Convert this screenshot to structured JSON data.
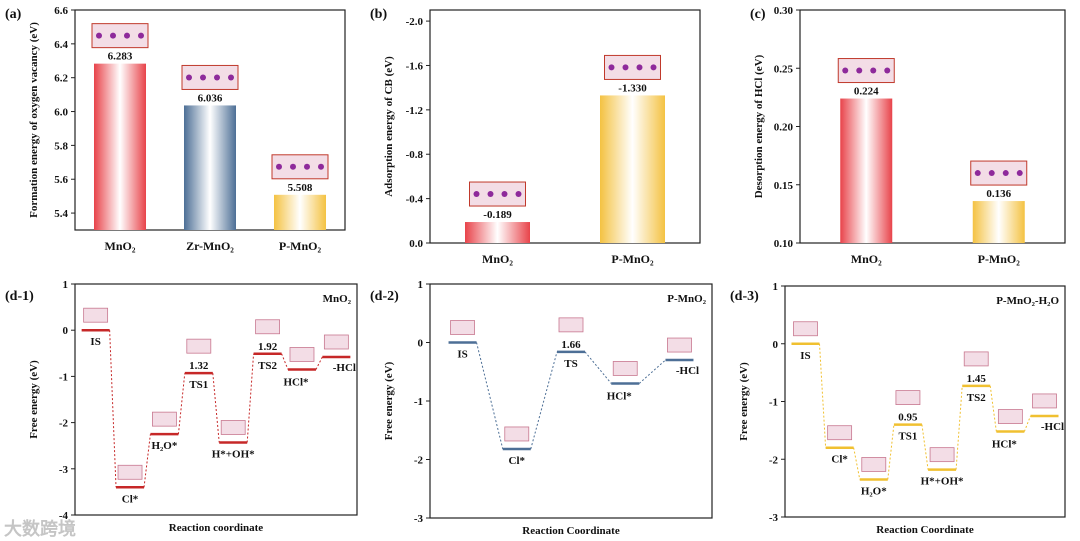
{
  "watermark": "大数跨境",
  "colors": {
    "red": "#e8434a",
    "blue": "#4d6f96",
    "orange": "#f4c242",
    "red_line": "#c62828",
    "orange_line": "#f0c030"
  },
  "chart_data": [
    {
      "id": "a",
      "panel_label": "(a)",
      "type": "bar",
      "ylabel": "Formation energy of oxygen vacancy (eV)",
      "categories": [
        "MnO2",
        "Zr-MnO2",
        "P-MnO2"
      ],
      "values": [
        6.283,
        6.036,
        5.508
      ],
      "value_labels": [
        "6.283",
        "6.036",
        "5.508"
      ],
      "colors": [
        "red",
        "blue",
        "orange"
      ],
      "ylim": [
        5.3,
        6.6
      ],
      "yticks": [
        5.4,
        5.6,
        5.8,
        6.0,
        6.2,
        6.4,
        6.6
      ],
      "ytick_labels": [
        "5.4",
        "5.6",
        "5.8",
        "6.0",
        "6.2",
        "6.4",
        "6.6"
      ],
      "reversed": false
    },
    {
      "id": "b",
      "panel_label": "(b)",
      "type": "bar",
      "ylabel": "Adsorption energy of CB (eV)",
      "categories": [
        "MnO2",
        "P-MnO2"
      ],
      "values": [
        -0.189,
        -1.33
      ],
      "value_labels": [
        "-0.189",
        "-1.330"
      ],
      "colors": [
        "red",
        "orange"
      ],
      "ylim": [
        0,
        -2.1
      ],
      "yticks": [
        0,
        -0.4,
        -0.8,
        -1.2,
        -1.6,
        -2.0
      ],
      "ytick_labels": [
        "0.0",
        "-0.4",
        "-0.8",
        "-1.2",
        "-1.6",
        "-2.0"
      ],
      "reversed": true
    },
    {
      "id": "c",
      "panel_label": "(c)",
      "type": "bar",
      "ylabel": "Desorption energy of HCl (eV)",
      "categories": [
        "MnO2",
        "P-MnO2"
      ],
      "values": [
        0.224,
        0.136
      ],
      "value_labels": [
        "0.224",
        "0.136"
      ],
      "colors": [
        "red",
        "orange"
      ],
      "ylim": [
        0.1,
        0.3
      ],
      "yticks": [
        0.1,
        0.15,
        0.2,
        0.25,
        0.3
      ],
      "ytick_labels": [
        "0.10",
        "0.15",
        "0.20",
        "0.25",
        "0.30"
      ],
      "reversed": false
    },
    {
      "id": "d1",
      "panel_label": "(d-1)",
      "type": "line",
      "title": "MnO2",
      "xlabel": "Reaction coordinate",
      "ylabel": "Free energy (eV)",
      "ylim": [
        -4,
        1
      ],
      "yticks": [
        1,
        0,
        -1,
        -2,
        -3,
        -4
      ],
      "ytick_labels": [
        "1",
        "0",
        "-1",
        "-2",
        "-3",
        "-4"
      ],
      "color": "red_line",
      "states": [
        "IS",
        "Cl*",
        "H2O*",
        "TS1",
        "H*+OH*",
        "TS2",
        "HCl*",
        "-HCl"
      ],
      "values": [
        0,
        -3.4,
        -2.25,
        -0.93,
        -2.43,
        -0.51,
        -0.85,
        -0.58
      ],
      "barriers": {
        "TS1": "1.32",
        "TS2": "1.92"
      }
    },
    {
      "id": "d2",
      "panel_label": "(d-2)",
      "type": "line",
      "title": "P-MnO2",
      "xlabel": "Reaction Coordinate",
      "ylabel": "Free energy (eV)",
      "ylim": [
        -3,
        1
      ],
      "yticks": [
        1,
        0,
        -1,
        -2,
        -3
      ],
      "ytick_labels": [
        "1",
        "0",
        "-1",
        "-2",
        "-3"
      ],
      "color": "blue",
      "states": [
        "IS",
        "Cl*",
        "TS",
        "HCl*",
        "-HCl"
      ],
      "values": [
        0,
        -1.82,
        -0.16,
        -0.7,
        -0.3
      ],
      "barriers": {
        "TS": "1.66"
      }
    },
    {
      "id": "d3",
      "panel_label": "(d-3)",
      "type": "line",
      "title": "P-MnO2-H2O",
      "xlabel": "Reaction Coordinate",
      "ylabel": "Free energy (eV)",
      "ylim": [
        -3,
        1
      ],
      "yticks": [
        1,
        0,
        -1,
        -2,
        -3
      ],
      "ytick_labels": [
        "1",
        "0",
        "-1",
        "-2",
        "-3"
      ],
      "color": "orange_line",
      "states": [
        "IS",
        "Cl*",
        "H2O*",
        "TS1",
        "H*+OH*",
        "TS2",
        "HCl*",
        "-HCl"
      ],
      "values": [
        0,
        -1.8,
        -2.35,
        -1.4,
        -2.18,
        -0.73,
        -1.52,
        -1.25
      ],
      "barriers": {
        "TS1": "0.95",
        "TS2": "1.45"
      }
    }
  ]
}
